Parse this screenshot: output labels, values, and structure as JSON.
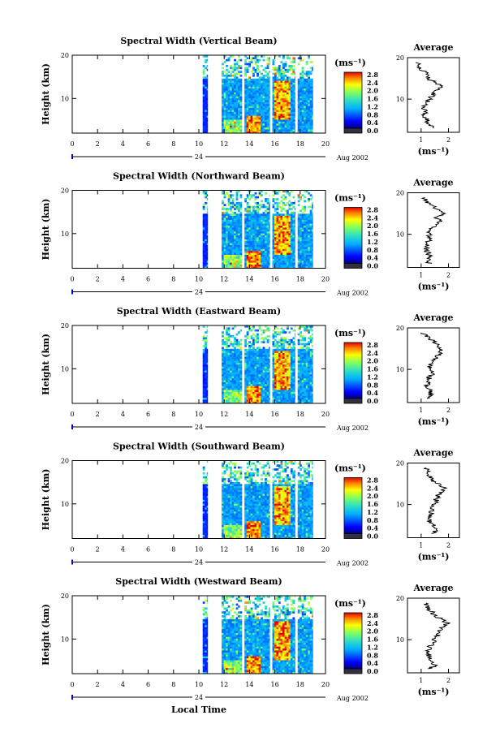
{
  "figure": {
    "xlabel": "Local Time",
    "date_label": "Aug 2002",
    "day_marker": "24",
    "colorbar_unit": "(ms⁻¹)",
    "colorbar_ticks": [
      "2.8",
      "2.4",
      "2.0",
      "1.6",
      "1.2",
      "0.8",
      "0.4",
      "0.0"
    ],
    "avg_title": "Average",
    "avg_xlabel": "(ms⁻¹)"
  },
  "chart_data": [
    {
      "type": "heatmap",
      "title": "Spectral Width (Vertical Beam)",
      "xlabel": "Local Time",
      "ylabel": "Height (km)",
      "xlim": [
        0,
        20
      ],
      "ylim": [
        2,
        20
      ],
      "xticks": [
        "0",
        "2",
        "4",
        "6",
        "8",
        "10",
        "12",
        "14",
        "16",
        "18",
        "20"
      ],
      "yticks": [
        "20",
        "10"
      ],
      "data_segments_hours": [
        [
          10.3,
          10.7
        ],
        [
          11.8,
          13.4
        ],
        [
          13.6,
          15.6
        ],
        [
          15.8,
          17.6
        ],
        [
          17.8,
          19
        ]
      ],
      "colorscale": {
        "unit": "ms⁻¹",
        "min": 0.0,
        "max": 2.8,
        "ticks": [
          0.0,
          0.4,
          0.8,
          1.2,
          1.6,
          2.0,
          2.4,
          2.8
        ]
      },
      "average_profile": {
        "title": "Average",
        "xlabel": "(ms⁻¹)",
        "xticks": [
          "1",
          "2"
        ],
        "xlim": [
          0.5,
          2.4
        ],
        "height_km": [
          3,
          4,
          5,
          6,
          7,
          8,
          9,
          10,
          11,
          12,
          13,
          14,
          15,
          16,
          17,
          18,
          19
        ],
        "width_ms": [
          1.4,
          1.3,
          1.2,
          1.1,
          1.15,
          1.1,
          1.2,
          1.3,
          1.45,
          1.5,
          1.75,
          1.5,
          1.25,
          1.2,
          1.05,
          0.9,
          0.85
        ]
      }
    },
    {
      "type": "heatmap",
      "title": "Spectral Width (Northward Beam)",
      "xlabel": "Local Time",
      "ylabel": "Height (km)",
      "xlim": [
        0,
        20
      ],
      "ylim": [
        2,
        20
      ],
      "xticks": [
        "0",
        "2",
        "4",
        "6",
        "8",
        "10",
        "12",
        "14",
        "16",
        "18",
        "20"
      ],
      "yticks": [
        "20",
        "10"
      ],
      "data_segments_hours": [
        [
          10.3,
          10.7
        ],
        [
          11.8,
          13.4
        ],
        [
          13.6,
          15.6
        ],
        [
          15.8,
          17.6
        ],
        [
          17.8,
          19
        ]
      ],
      "colorscale": {
        "unit": "ms⁻¹",
        "min": 0.0,
        "max": 2.8,
        "ticks": [
          0.0,
          0.4,
          0.8,
          1.2,
          1.6,
          2.0,
          2.4,
          2.8
        ]
      },
      "average_profile": {
        "title": "Average",
        "xlabel": "(ms⁻¹)",
        "xticks": [
          "1",
          "2"
        ],
        "xlim": [
          0.5,
          2.4
        ],
        "height_km": [
          3,
          4,
          5,
          6,
          7,
          8,
          9,
          10,
          11,
          12,
          13,
          14,
          15,
          16,
          17,
          18,
          19
        ],
        "width_ms": [
          1.3,
          1.25,
          1.3,
          1.2,
          1.2,
          1.25,
          1.3,
          1.3,
          1.35,
          1.5,
          1.7,
          1.55,
          1.8,
          1.6,
          1.35,
          1.2,
          1.1
        ]
      }
    },
    {
      "type": "heatmap",
      "title": "Spectral Width (Eastward Beam)",
      "xlabel": "Local Time",
      "ylabel": "Height (km)",
      "xlim": [
        0,
        20
      ],
      "ylim": [
        2,
        20
      ],
      "xticks": [
        "0",
        "2",
        "4",
        "6",
        "8",
        "10",
        "12",
        "14",
        "16",
        "18",
        "20"
      ],
      "yticks": [
        "20",
        "10"
      ],
      "data_segments_hours": [
        [
          10.3,
          10.7
        ],
        [
          11.8,
          13.4
        ],
        [
          13.6,
          15.6
        ],
        [
          15.8,
          17.6
        ],
        [
          17.8,
          19
        ]
      ],
      "colorscale": {
        "unit": "ms⁻¹",
        "min": 0.0,
        "max": 2.8,
        "ticks": [
          0.0,
          0.4,
          0.8,
          1.2,
          1.6,
          2.0,
          2.4,
          2.8
        ]
      },
      "average_profile": {
        "title": "Average",
        "xlabel": "(ms⁻¹)",
        "xticks": [
          "1",
          "2"
        ],
        "xlim": [
          0.5,
          2.4
        ],
        "height_km": [
          3,
          4,
          5,
          6,
          7,
          8,
          9,
          10,
          11,
          12,
          13,
          14,
          15,
          16,
          17,
          18,
          19
        ],
        "width_ms": [
          1.3,
          1.35,
          1.3,
          1.2,
          1.25,
          1.3,
          1.4,
          1.35,
          1.3,
          1.45,
          1.55,
          1.7,
          1.75,
          1.6,
          1.4,
          1.2,
          1.0
        ]
      }
    },
    {
      "type": "heatmap",
      "title": "Spectral Width (Southward Beam)",
      "xlabel": "Local Time",
      "ylabel": "Height (km)",
      "xlim": [
        0,
        20
      ],
      "ylim": [
        2,
        20
      ],
      "xticks": [
        "0",
        "2",
        "4",
        "6",
        "8",
        "10",
        "12",
        "14",
        "16",
        "18",
        "20"
      ],
      "yticks": [
        "20",
        "10"
      ],
      "data_segments_hours": [
        [
          10.3,
          10.7
        ],
        [
          11.8,
          13.4
        ],
        [
          13.6,
          15.6
        ],
        [
          15.8,
          17.6
        ],
        [
          17.8,
          19
        ]
      ],
      "colorscale": {
        "unit": "ms⁻¹",
        "min": 0.0,
        "max": 2.8,
        "ticks": [
          0.0,
          0.4,
          0.8,
          1.2,
          1.6,
          2.0,
          2.4,
          2.8
        ]
      },
      "average_profile": {
        "title": "Average",
        "xlabel": "(ms⁻¹)",
        "xticks": [
          "1",
          "2"
        ],
        "xlim": [
          0.5,
          2.4
        ],
        "height_km": [
          3,
          4,
          5,
          6,
          7,
          8,
          9,
          10,
          11,
          12,
          13,
          14,
          15,
          16,
          17,
          18,
          19
        ],
        "width_ms": [
          1.4,
          1.55,
          1.45,
          1.3,
          1.3,
          1.35,
          1.4,
          1.5,
          1.55,
          1.6,
          1.7,
          1.85,
          1.6,
          1.4,
          1.3,
          1.25,
          1.1
        ]
      }
    },
    {
      "type": "heatmap",
      "title": "Spectral Width (Westward Beam)",
      "xlabel": "Local Time",
      "ylabel": "Height (km)",
      "xlim": [
        0,
        20
      ],
      "ylim": [
        2,
        20
      ],
      "xticks": [
        "0",
        "2",
        "4",
        "6",
        "8",
        "10",
        "12",
        "14",
        "16",
        "18",
        "20"
      ],
      "yticks": [
        "20",
        "10"
      ],
      "data_segments_hours": [
        [
          10.3,
          10.7
        ],
        [
          11.8,
          13.4
        ],
        [
          13.6,
          15.6
        ],
        [
          15.8,
          17.6
        ],
        [
          17.8,
          19
        ]
      ],
      "colorscale": {
        "unit": "ms⁻¹",
        "min": 0.0,
        "max": 2.8,
        "ticks": [
          0.0,
          0.4,
          0.8,
          1.2,
          1.6,
          2.0,
          2.4,
          2.8
        ]
      },
      "average_profile": {
        "title": "Average",
        "xlabel": "(ms⁻¹)",
        "xticks": [
          "1",
          "2"
        ],
        "xlim": [
          0.5,
          2.4
        ],
        "height_km": [
          3,
          4,
          5,
          6,
          7,
          8,
          9,
          10,
          11,
          12,
          13,
          14,
          15,
          16,
          17,
          18,
          19
        ],
        "width_ms": [
          1.35,
          1.5,
          1.4,
          1.3,
          1.25,
          1.3,
          1.4,
          1.5,
          1.6,
          1.7,
          1.8,
          1.95,
          1.7,
          1.5,
          1.35,
          1.2,
          1.1
        ]
      }
    }
  ]
}
